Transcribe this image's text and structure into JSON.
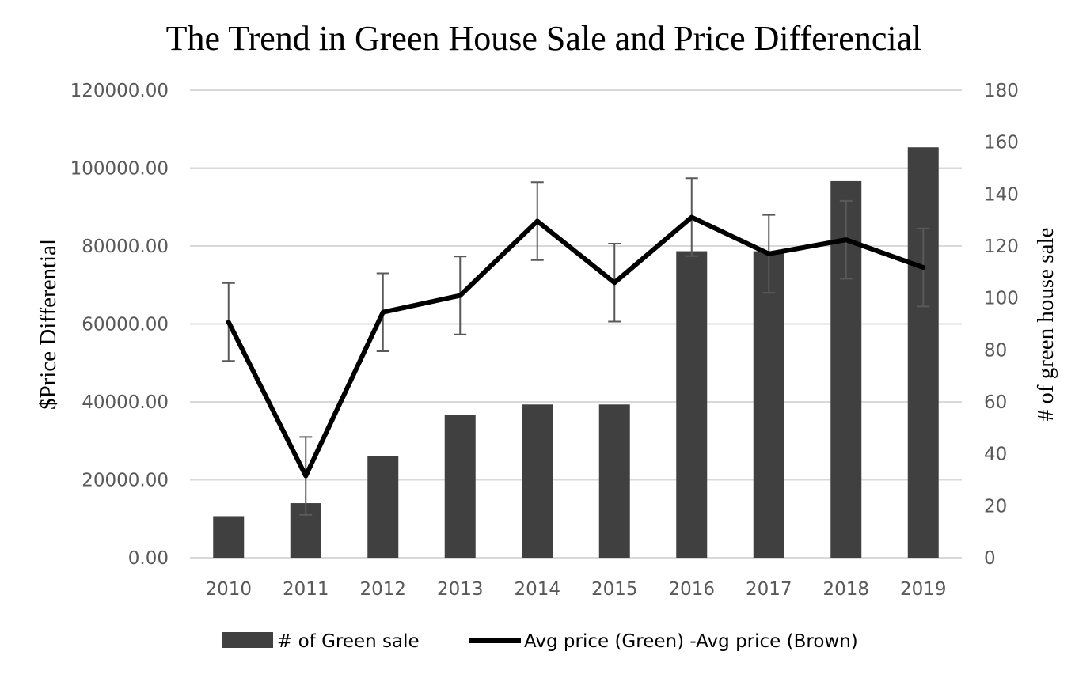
{
  "chart_data": {
    "type": "bar+line",
    "title": "The Trend in Green House Sale and Price Differencial",
    "categories": [
      "2010",
      "2011",
      "2012",
      "2013",
      "2014",
      "2015",
      "2016",
      "2017",
      "2018",
      "2019"
    ],
    "y_left": {
      "label": "$Price Differential",
      "ylim": [
        0,
        120000
      ],
      "ticks": [
        0,
        20000,
        40000,
        60000,
        80000,
        100000,
        120000
      ],
      "tick_labels": [
        "0.00",
        "20000.00",
        "40000.00",
        "60000.00",
        "80000.00",
        "100000.00",
        "120000.00"
      ]
    },
    "y_right": {
      "label": "# of green house sale",
      "ylim": [
        0,
        180
      ],
      "ticks": [
        0,
        20,
        40,
        60,
        80,
        100,
        120,
        140,
        160,
        180
      ],
      "tick_labels": [
        "0",
        "20",
        "40",
        "60",
        "80",
        "100",
        "120",
        "140",
        "160",
        "180"
      ]
    },
    "grid": true,
    "series": [
      {
        "name": "# of Green sale",
        "type": "bar",
        "axis": "right",
        "color": "#404040",
        "values": [
          16,
          21,
          39,
          55,
          59,
          59,
          118,
          118,
          145,
          158
        ]
      },
      {
        "name": "Avg price (Green) -Avg price (Brown)",
        "type": "line",
        "axis": "left",
        "color": "#000000",
        "values": [
          60500,
          21000,
          63000,
          67300,
          86400,
          70600,
          87400,
          78000,
          81600,
          74500
        ],
        "error_bars": 10000,
        "error_bar_color": "#595959"
      }
    ],
    "legend_position": "bottom"
  }
}
